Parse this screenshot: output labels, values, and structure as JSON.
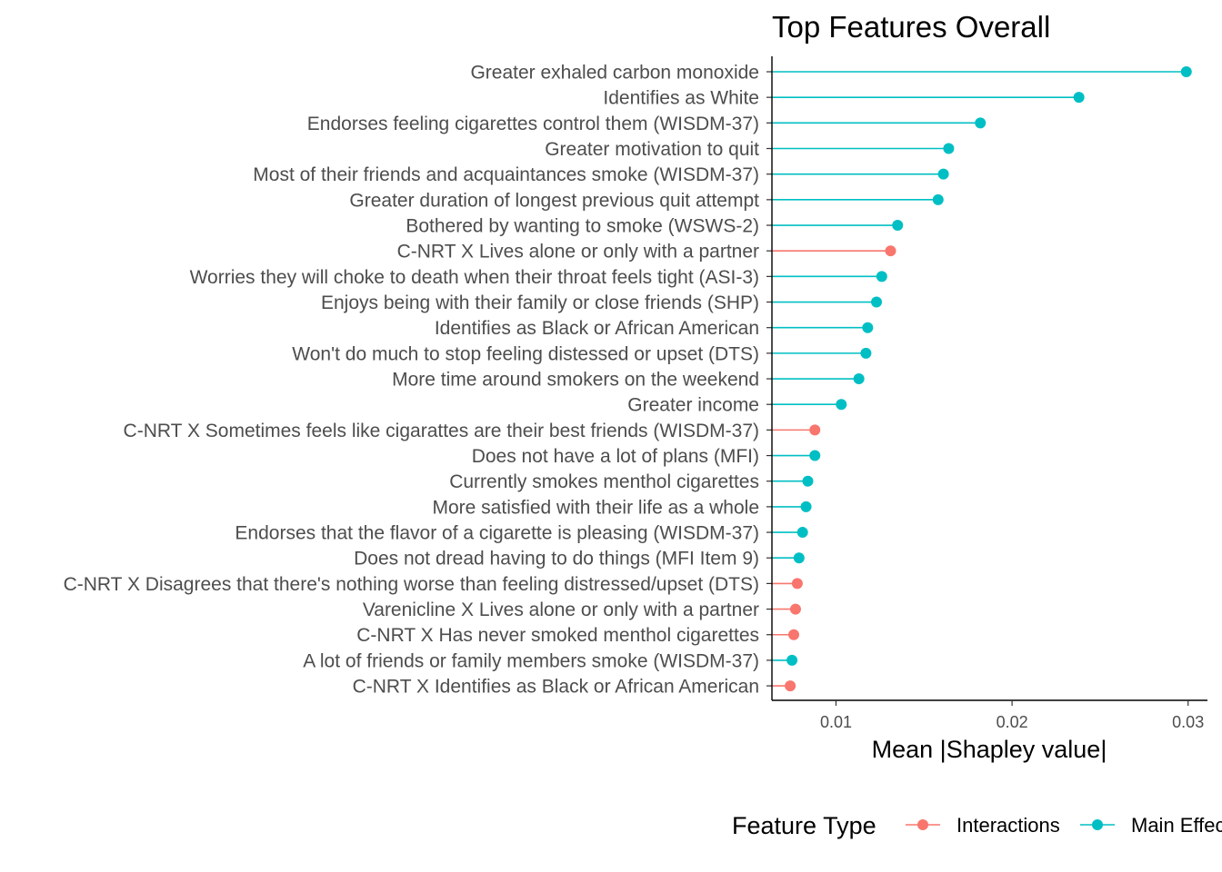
{
  "chart_data": {
    "type": "lollipop",
    "title": "Top Features Overall",
    "xlabel": "Mean |Shapley value|",
    "ylabel": "",
    "xlim": [
      0.00636,
      0.0311
    ],
    "x_ticks": [
      0.01,
      0.02,
      0.03
    ],
    "x_tick_labels": [
      "0.01",
      "0.02",
      "0.03"
    ],
    "grid": false,
    "legend": {
      "title": "Feature Type",
      "position": "bottom",
      "entries": [
        {
          "name": "Interactions",
          "color": "#F8766D"
        },
        {
          "name": "Main Effects",
          "color": "#00BFC4"
        }
      ]
    },
    "features": [
      {
        "label": "Greater exhaled carbon monoxide",
        "value": 0.0299,
        "type": "Main Effects"
      },
      {
        "label": "Identifies as White",
        "value": 0.0238,
        "type": "Main Effects"
      },
      {
        "label": "Endorses feeling cigarettes control them (WISDM-37)",
        "value": 0.0182,
        "type": "Main Effects"
      },
      {
        "label": "Greater motivation to quit",
        "value": 0.0164,
        "type": "Main Effects"
      },
      {
        "label": "Most of their friends and acquaintances smoke (WISDM-37)",
        "value": 0.0161,
        "type": "Main Effects"
      },
      {
        "label": "Greater duration of longest previous quit attempt",
        "value": 0.0158,
        "type": "Main Effects"
      },
      {
        "label": "Bothered by wanting to smoke (WSWS-2)",
        "value": 0.0135,
        "type": "Main Effects"
      },
      {
        "label": "C-NRT X Lives alone or only with a partner",
        "value": 0.0131,
        "type": "Interactions"
      },
      {
        "label": "Worries they will choke to death when their throat feels tight (ASI-3)",
        "value": 0.0126,
        "type": "Main Effects"
      },
      {
        "label": "Enjoys being with their family or close friends (SHP)",
        "value": 0.0123,
        "type": "Main Effects"
      },
      {
        "label": "Identifies as Black or African American",
        "value": 0.0118,
        "type": "Main Effects"
      },
      {
        "label": "Won't do much to stop feeling distessed or upset (DTS)",
        "value": 0.0117,
        "type": "Main Effects"
      },
      {
        "label": "More time around smokers on the weekend",
        "value": 0.0113,
        "type": "Main Effects"
      },
      {
        "label": "Greater income",
        "value": 0.0103,
        "type": "Main Effects"
      },
      {
        "label": "C-NRT X Sometimes feels like cigarattes are their best friends (WISDM-37)",
        "value": 0.0088,
        "type": "Interactions"
      },
      {
        "label": "Does not have a lot of plans (MFI)",
        "value": 0.0088,
        "type": "Main Effects"
      },
      {
        "label": "Currently smokes menthol cigarettes",
        "value": 0.0084,
        "type": "Main Effects"
      },
      {
        "label": "More satisfied with their life as a whole",
        "value": 0.0083,
        "type": "Main Effects"
      },
      {
        "label": "Endorses that the flavor of a cigarette is pleasing (WISDM-37)",
        "value": 0.0081,
        "type": "Main Effects"
      },
      {
        "label": "Does not dread having to do things (MFI Item 9)",
        "value": 0.0079,
        "type": "Main Effects"
      },
      {
        "label": "C-NRT X Disagrees that there's nothing worse than feeling distressed/upset (DTS)",
        "value": 0.0078,
        "type": "Interactions"
      },
      {
        "label": "Varenicline X Lives alone or only with a partner",
        "value": 0.0077,
        "type": "Interactions"
      },
      {
        "label": "C-NRT X Has never smoked menthol cigarettes",
        "value": 0.0076,
        "type": "Interactions"
      },
      {
        "label": "A lot of friends or family members smoke (WISDM-37)",
        "value": 0.0075,
        "type": "Main Effects"
      },
      {
        "label": "C-NRT X Identifies as Black or African American",
        "value": 0.0074,
        "type": "Interactions"
      }
    ]
  }
}
